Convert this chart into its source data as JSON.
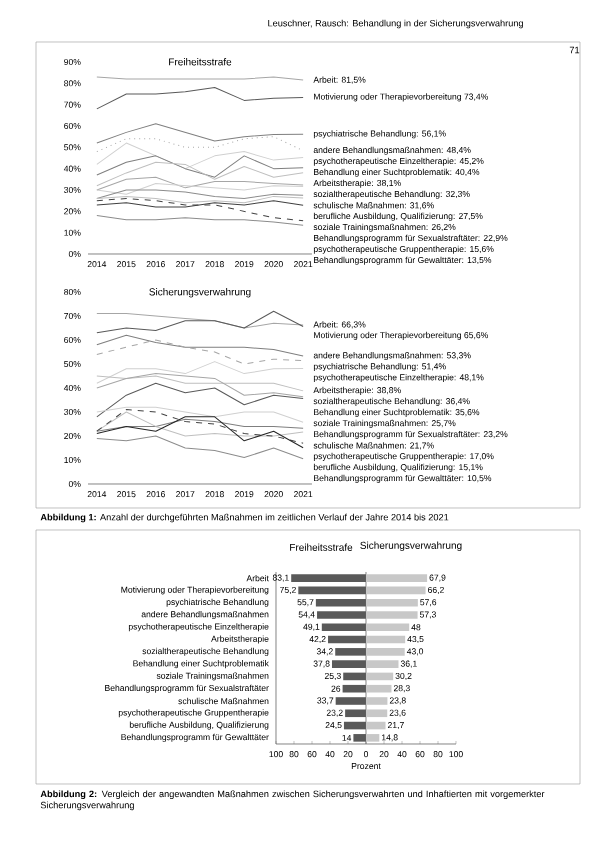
{
  "chart_data": [
    {
      "type": "line",
      "title": "Freiheitsstrafe",
      "annotations": [
        "Leuschner, Rausch: Behandlung in der Sicherungsverwahrung",
        "71"
      ],
      "x": [
        2014,
        2015,
        2016,
        2017,
        2018,
        2019,
        2020,
        2021
      ],
      "xlim": [
        2013.7,
        2021.3
      ],
      "xticks": [
        2014,
        2015,
        2016,
        2017,
        2018,
        2019,
        2020,
        2021
      ],
      "ylim": [
        0,
        90
      ],
      "yticks": [
        {
          "value": 0,
          "label": "0%"
        },
        {
          "value": 10,
          "label": "10%"
        },
        {
          "value": 20,
          "label": "20%"
        },
        {
          "value": 30,
          "label": "30%"
        },
        {
          "value": 40,
          "label": "40%"
        },
        {
          "value": 50,
          "label": "50%"
        },
        {
          "value": 60,
          "label": "60%"
        },
        {
          "value": 70,
          "label": "70%"
        },
        {
          "value": 80,
          "label": "80%"
        },
        {
          "value": 90,
          "label": "90%"
        }
      ],
      "series": [
        {
          "name": "Arbeit: 81,5%",
          "color": "#a6a6a6",
          "values": [
            83,
            82,
            82,
            82,
            82,
            82,
            83,
            81.5
          ]
        },
        {
          "name": "Motivierung oder Therapievorbereitung 73,4%",
          "color": "#595959",
          "values": [
            68,
            75,
            75,
            76,
            78,
            72,
            73,
            73.4
          ]
        },
        {
          "name": "psychiatrische Behandlung: 56,1%",
          "color": "#7f7f7f",
          "values": [
            52,
            57,
            61,
            57,
            53,
            55,
            56,
            56.1
          ]
        },
        {
          "name": "andere Behandlungsmaßnahmen: 48,4%",
          "color": "#a6a6a6",
          "line_style": "dotted",
          "values": [
            48,
            54,
            54,
            50,
            50,
            54,
            55,
            48.4
          ]
        },
        {
          "name": "psychotherapeutische Einzeltherapie: 45,2%",
          "color": "#d0d0d0",
          "values": [
            42,
            52,
            46,
            40,
            46,
            48,
            44,
            45.2
          ]
        },
        {
          "name": "Behandlung einer Suchtproblematik: 40,4%",
          "color": "#7f7f7f",
          "values": [
            37,
            43,
            46,
            40,
            36,
            46,
            40,
            40.4
          ]
        },
        {
          "name": "Arbeitstherapie: 38,1%",
          "color": "#bfbfbf",
          "values": [
            32,
            38,
            43,
            42,
            35,
            41,
            36,
            38.1
          ]
        },
        {
          "name": "sozialtherapeutische Behandlung: 32,3%",
          "color": "#a6a6a6",
          "values": [
            30,
            35,
            36,
            31,
            34,
            34,
            33,
            32.3
          ]
        },
        {
          "name": "schulische Maßnahmen: 31,6%",
          "color": "#d0d0d0",
          "values": [
            30,
            28,
            33,
            32,
            31,
            30,
            32,
            31.6
          ]
        },
        {
          "name": "berufliche Ausbildung, Qualifizierung: 27,5%",
          "color": "#8c8c8c",
          "values": [
            26,
            30,
            30,
            29,
            27,
            26,
            28,
            27.5
          ]
        },
        {
          "name": "soziale Trainingsmaßnahmen: 26,2%",
          "color": "#bfbfbf",
          "values": [
            26,
            27,
            26,
            24,
            25,
            24,
            27,
            26.2
          ]
        },
        {
          "name": "Behandlungsprogramm für Sexualstraftäter: 22,9%",
          "color": "#404040",
          "values": [
            23,
            24,
            22,
            22,
            24,
            23,
            25,
            22.9
          ]
        },
        {
          "name": "psychotherapeutische Gruppentherapie: 15,6%",
          "color": "#404040",
          "line_style": "dashed",
          "values": [
            25,
            26,
            25,
            23,
            23,
            20,
            17,
            15.6
          ]
        },
        {
          "name": "Behandlungsprogramm für Gewalttäter: 13,5%",
          "color": "#8c8c8c",
          "values": [
            18,
            16,
            16,
            17,
            16,
            16,
            15,
            13.5
          ]
        }
      ]
    },
    {
      "type": "line",
      "title": "Sicherungsverwahrung",
      "annotations": [
        "**Abbildung 1:** Anzahl der durchgeführten Maßnahmen im zeitlichen Verlauf der Jahre 2014 bis 2021"
      ],
      "x": [
        2014,
        2015,
        2016,
        2017,
        2018,
        2019,
        2020,
        2021
      ],
      "xlim": [
        2013.7,
        2021.3
      ],
      "xticks": [
        2014,
        2015,
        2016,
        2017,
        2018,
        2019,
        2020,
        2021
      ],
      "ylim": [
        0,
        80
      ],
      "yticks": [
        {
          "value": 0,
          "label": "0%"
        },
        {
          "value": 10,
          "label": "10%"
        },
        {
          "value": 20,
          "label": "20%"
        },
        {
          "value": 30,
          "label": "30%"
        },
        {
          "value": 40,
          "label": "40%"
        },
        {
          "value": 50,
          "label": "50%"
        },
        {
          "value": 60,
          "label": "60%"
        },
        {
          "value": 70,
          "label": "70%"
        },
        {
          "value": 80,
          "label": "80%"
        }
      ],
      "series": [
        {
          "name": "Arbeit: 66,3%",
          "color": "#a6a6a6",
          "values": [
            71,
            71,
            70,
            69,
            68,
            65,
            67,
            66.3
          ]
        },
        {
          "name": "Motivierung oder Therapievorbereitung 65,6%",
          "color": "#595959",
          "values": [
            63,
            65,
            64,
            68,
            68,
            65,
            72,
            65.6
          ]
        },
        {
          "name": "andere Behandlungsmaßnahmen: 53,3%",
          "color": "#7f7f7f",
          "values": [
            58,
            62,
            59,
            57,
            57,
            57,
            56,
            53.3
          ]
        },
        {
          "name": "psychiatrische Behandlung: 51,4%",
          "color": "#a6a6a6",
          "line_style": "dashed",
          "values": [
            54,
            57,
            60,
            57,
            55,
            50,
            52,
            51.4
          ]
        },
        {
          "name": "psychotherapeutische Einzeltherapie: 48,1%",
          "color": "#d0d0d0",
          "values": [
            42,
            48,
            48,
            46,
            51,
            46,
            48,
            48.1
          ]
        },
        {
          "name": "Arbeitstherapie: 38,8%",
          "color": "#bfbfbf",
          "values": [
            45,
            44,
            45,
            42,
            42,
            42,
            42,
            38.8
          ]
        },
        {
          "name": "sozialtherapeutische Behandlung: 36,4%",
          "color": "#a6a6a6",
          "values": [
            40,
            44,
            46,
            45,
            44,
            37,
            38,
            36.4
          ]
        },
        {
          "name": "Behandlung einer Suchtproblematik: 35,6%",
          "color": "#595959",
          "values": [
            28,
            37,
            42,
            38,
            40,
            33,
            37,
            35.6
          ]
        },
        {
          "name": "soziale Trainingsmaßnahmen: 25,7%",
          "color": "#d0d0d0",
          "values": [
            30,
            32,
            32,
            30,
            28,
            30,
            30,
            25.7
          ]
        },
        {
          "name": "Behandlungsprogramm für Sexualstraftäter: 23,2%",
          "color": "#7f7f7f",
          "values": [
            22,
            24,
            24,
            27,
            26,
            24,
            24,
            23.2
          ]
        },
        {
          "name": "schulische Maßnahmen: 21,7%",
          "color": "#bfbfbf",
          "values": [
            22,
            30,
            24,
            20,
            21,
            20,
            20,
            21.7
          ]
        },
        {
          "name": "psychotherapeutische Gruppentherapie: 17,0%",
          "color": "#404040",
          "line_style": "dashed",
          "values": [
            22,
            31,
            30,
            26,
            25,
            21,
            20,
            17.0
          ]
        },
        {
          "name": "berufliche Ausbildung, Qualifizierung: 15,1%",
          "color": "#262626",
          "values": [
            21,
            24,
            22,
            28,
            28,
            18,
            22,
            15.1
          ]
        },
        {
          "name": "Behandlungsprogramm für Gewalttäter: 10,5%",
          "color": "#8c8c8c",
          "values": [
            19,
            18,
            20,
            15,
            14,
            11,
            15,
            10.5
          ]
        }
      ]
    },
    {
      "type": "bar",
      "orientation": "horizontal",
      "title": "Freiheitsstrafe",
      "xlabel": "Prozent",
      "categories": [
        "Arbeit",
        "Motivierung oder Therapievorbereitung",
        "psychiatrische Behandlung",
        "andere Behandlungsmaßnahmen",
        "psychotherapeutische Einzeltherapie",
        "Arbeitstherapie",
        "sozialtherapeutische Behandlung",
        "Behandlung einer Suchtproblematik",
        "soziale Trainingsmaßnahmen",
        "Behandlungsprogramm für Sexualstraftäter",
        "schulische Maßnahmen",
        "psychotherapeutische Gruppentherapie",
        "berufliche Ausbildung, Qualifizierung",
        "Behandlungsprogramm für Gewalttäter"
      ],
      "xlim": [
        100,
        0
      ],
      "xticks": [
        100,
        80,
        60,
        40,
        20,
        0
      ],
      "series": [
        {
          "color": "#595959",
          "values": [
            83.1,
            75.2,
            55.7,
            54.4,
            49.1,
            42.2,
            34.2,
            37.8,
            25.3,
            26,
            33.7,
            23.2,
            24.5,
            14
          ],
          "value_labels": [
            "83,1",
            "75,2",
            "55,7",
            "54,4",
            "49,1",
            "42,2",
            "34,2",
            "37,8",
            "25,3",
            "26",
            "33,7",
            "23,2",
            "24,5",
            "14"
          ]
        }
      ]
    },
    {
      "type": "bar",
      "orientation": "horizontal",
      "title": "Sicherungsverwahrung",
      "tick_labels": "x",
      "annotations": [
        "**Abbildung 2:** Vergleich der angewandten Maßnahmen zwischen Sicherungsverwahrten und Inhaftierten mit vorgemerkter Sicherungsverwahrung"
      ],
      "categories": [
        null,
        null,
        null,
        null,
        null,
        null,
        null,
        null,
        null,
        null,
        null,
        null,
        null,
        null
      ],
      "xlim": [
        0,
        100
      ],
      "xticks": [
        20,
        40,
        60,
        80,
        100
      ],
      "series": [
        {
          "color": "#c8c8c8",
          "values": [
            67.9,
            66.2,
            57.6,
            57.3,
            48,
            43.5,
            43.0,
            36.1,
            30.2,
            28.3,
            23.8,
            23.6,
            21.7,
            14.8
          ],
          "value_labels": [
            "67,9",
            "66,2",
            "57,6",
            "57,3",
            "48",
            "43,5",
            "43,0",
            "36,1",
            "30,2",
            "28,3",
            "23,8",
            "23,6",
            "21,7",
            "14,8"
          ]
        }
      ]
    }
  ]
}
